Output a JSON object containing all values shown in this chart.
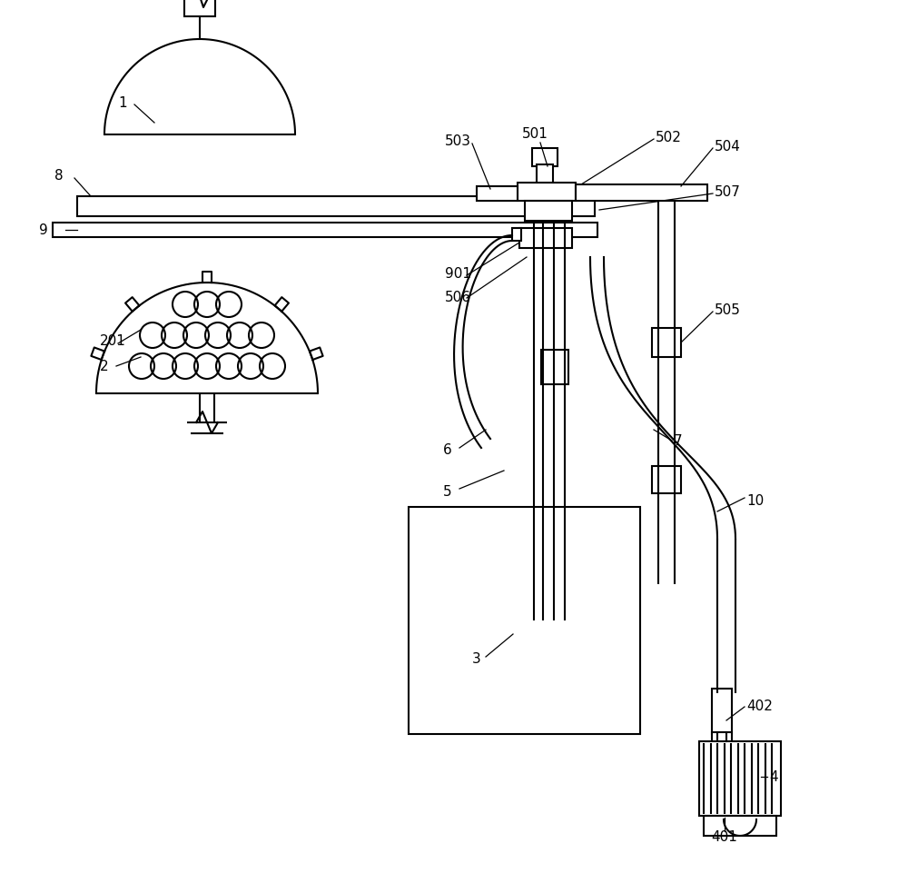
{
  "bg_color": "#ffffff",
  "lc": "#000000",
  "lw": 1.5,
  "fs": 11,
  "figsize": [
    10.0,
    9.83
  ],
  "dpi": 100
}
